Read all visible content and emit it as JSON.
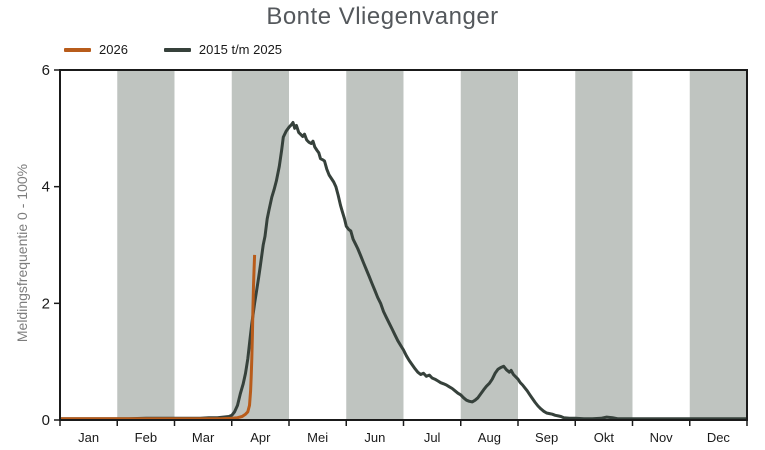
{
  "title": "Bonte Vliegenvanger",
  "legend": {
    "items": [
      {
        "label": "2026",
        "color": "#b85c1b"
      },
      {
        "label": "2015 t/m 2025",
        "color": "#36413b"
      }
    ]
  },
  "y_axis": {
    "label": "Meldingsfrequentie 0 - 100%",
    "ticks": [
      "0",
      "2",
      "4",
      "6"
    ],
    "min": 0,
    "max": 6
  },
  "x_axis": {
    "labels": [
      "Jan",
      "Feb",
      "Mar",
      "Apr",
      "Mei",
      "Jun",
      "Jul",
      "Aug",
      "Sep",
      "Okt",
      "Nov",
      "Dec"
    ]
  },
  "colors": {
    "band": "#bfc4c0",
    "axis": "#1a1a1a",
    "title_text": "#54585c",
    "y_axis_title_text": "#7d7d7d",
    "series_2026": "#b85c1b",
    "series_historical": "#36413b"
  },
  "chart_data": {
    "type": "line",
    "title": "Bonte Vliegenvanger",
    "ylabel": "Meldingsfrequentie 0 - 100%",
    "ylim": [
      0,
      6
    ],
    "x_unit": "months since Jan 1 (0 = Jan, 12 = end of Dec)",
    "x_tick_labels": [
      "Jan",
      "Feb",
      "Mar",
      "Apr",
      "Mei",
      "Jun",
      "Jul",
      "Aug",
      "Sep",
      "Okt",
      "Nov",
      "Dec"
    ],
    "shaded_months": [
      "Feb",
      "Apr",
      "Jun",
      "Aug",
      "Okt",
      "Dec"
    ],
    "grid": false,
    "legend_position": "top-left",
    "series": [
      {
        "name": "2015 t/m 2025",
        "color": "#36413b",
        "points": [
          [
            0,
            0.02
          ],
          [
            0.3,
            0.02
          ],
          [
            0.6,
            0.02
          ],
          [
            0.9,
            0.02
          ],
          [
            1.2,
            0.02
          ],
          [
            1.5,
            0.03
          ],
          [
            1.8,
            0.03
          ],
          [
            2.1,
            0.03
          ],
          [
            2.3,
            0.03
          ],
          [
            2.45,
            0.03
          ],
          [
            2.6,
            0.04
          ],
          [
            2.75,
            0.04
          ],
          [
            2.85,
            0.05
          ],
          [
            2.95,
            0.06
          ],
          [
            3.0,
            0.08
          ],
          [
            3.05,
            0.14
          ],
          [
            3.1,
            0.25
          ],
          [
            3.15,
            0.45
          ],
          [
            3.2,
            0.62
          ],
          [
            3.24,
            0.8
          ],
          [
            3.28,
            1.05
          ],
          [
            3.32,
            1.4
          ],
          [
            3.35,
            1.65
          ],
          [
            3.4,
            2.0
          ],
          [
            3.44,
            2.25
          ],
          [
            3.47,
            2.45
          ],
          [
            3.5,
            2.65
          ],
          [
            3.55,
            3.0
          ],
          [
            3.58,
            3.15
          ],
          [
            3.62,
            3.45
          ],
          [
            3.65,
            3.6
          ],
          [
            3.7,
            3.82
          ],
          [
            3.74,
            3.95
          ],
          [
            3.78,
            4.1
          ],
          [
            3.83,
            4.35
          ],
          [
            3.87,
            4.62
          ],
          [
            3.9,
            4.85
          ],
          [
            3.95,
            4.95
          ],
          [
            4.0,
            5.02
          ],
          [
            4.04,
            5.06
          ],
          [
            4.07,
            5.1
          ],
          [
            4.1,
            5.0
          ],
          [
            4.13,
            5.05
          ],
          [
            4.17,
            4.93
          ],
          [
            4.2,
            4.9
          ],
          [
            4.24,
            4.86
          ],
          [
            4.27,
            4.9
          ],
          [
            4.31,
            4.8
          ],
          [
            4.35,
            4.76
          ],
          [
            4.39,
            4.74
          ],
          [
            4.42,
            4.78
          ],
          [
            4.45,
            4.68
          ],
          [
            4.49,
            4.62
          ],
          [
            4.52,
            4.58
          ],
          [
            4.55,
            4.48
          ],
          [
            4.59,
            4.46
          ],
          [
            4.62,
            4.44
          ],
          [
            4.66,
            4.3
          ],
          [
            4.7,
            4.2
          ],
          [
            4.74,
            4.14
          ],
          [
            4.78,
            4.08
          ],
          [
            4.82,
            4.0
          ],
          [
            4.86,
            3.85
          ],
          [
            4.9,
            3.68
          ],
          [
            4.93,
            3.58
          ],
          [
            4.97,
            3.45
          ],
          [
            5.0,
            3.32
          ],
          [
            5.04,
            3.27
          ],
          [
            5.08,
            3.24
          ],
          [
            5.12,
            3.1
          ],
          [
            5.16,
            3.02
          ],
          [
            5.2,
            2.94
          ],
          [
            5.25,
            2.82
          ],
          [
            5.3,
            2.7
          ],
          [
            5.35,
            2.58
          ],
          [
            5.4,
            2.46
          ],
          [
            5.45,
            2.34
          ],
          [
            5.5,
            2.22
          ],
          [
            5.55,
            2.1
          ],
          [
            5.6,
            2.0
          ],
          [
            5.65,
            1.86
          ],
          [
            5.7,
            1.76
          ],
          [
            5.75,
            1.66
          ],
          [
            5.8,
            1.56
          ],
          [
            5.85,
            1.46
          ],
          [
            5.9,
            1.36
          ],
          [
            5.95,
            1.28
          ],
          [
            6.0,
            1.2
          ],
          [
            6.05,
            1.1
          ],
          [
            6.1,
            1.02
          ],
          [
            6.15,
            0.95
          ],
          [
            6.2,
            0.88
          ],
          [
            6.25,
            0.82
          ],
          [
            6.3,
            0.78
          ],
          [
            6.35,
            0.8
          ],
          [
            6.4,
            0.75
          ],
          [
            6.45,
            0.77
          ],
          [
            6.5,
            0.72
          ],
          [
            6.55,
            0.7
          ],
          [
            6.6,
            0.67
          ],
          [
            6.65,
            0.64
          ],
          [
            6.7,
            0.62
          ],
          [
            6.75,
            0.6
          ],
          [
            6.8,
            0.57
          ],
          [
            6.85,
            0.54
          ],
          [
            6.9,
            0.5
          ],
          [
            6.95,
            0.46
          ],
          [
            7.0,
            0.43
          ],
          [
            7.05,
            0.38
          ],
          [
            7.1,
            0.34
          ],
          [
            7.15,
            0.32
          ],
          [
            7.2,
            0.31
          ],
          [
            7.25,
            0.34
          ],
          [
            7.3,
            0.38
          ],
          [
            7.35,
            0.45
          ],
          [
            7.4,
            0.52
          ],
          [
            7.45,
            0.58
          ],
          [
            7.5,
            0.63
          ],
          [
            7.55,
            0.7
          ],
          [
            7.6,
            0.8
          ],
          [
            7.65,
            0.87
          ],
          [
            7.7,
            0.9
          ],
          [
            7.75,
            0.92
          ],
          [
            7.8,
            0.86
          ],
          [
            7.85,
            0.82
          ],
          [
            7.88,
            0.85
          ],
          [
            7.92,
            0.78
          ],
          [
            7.96,
            0.74
          ],
          [
            8.0,
            0.7
          ],
          [
            8.04,
            0.64
          ],
          [
            8.08,
            0.6
          ],
          [
            8.12,
            0.55
          ],
          [
            8.16,
            0.5
          ],
          [
            8.2,
            0.44
          ],
          [
            8.25,
            0.37
          ],
          [
            8.3,
            0.3
          ],
          [
            8.35,
            0.24
          ],
          [
            8.4,
            0.19
          ],
          [
            8.45,
            0.15
          ],
          [
            8.5,
            0.12
          ],
          [
            8.55,
            0.11
          ],
          [
            8.6,
            0.1
          ],
          [
            8.65,
            0.08
          ],
          [
            8.7,
            0.07
          ],
          [
            8.75,
            0.06
          ],
          [
            8.8,
            0.04
          ],
          [
            8.9,
            0.03
          ],
          [
            9.0,
            0.03
          ],
          [
            9.15,
            0.02
          ],
          [
            9.3,
            0.02
          ],
          [
            9.45,
            0.03
          ],
          [
            9.55,
            0.05
          ],
          [
            9.65,
            0.04
          ],
          [
            9.75,
            0.02
          ],
          [
            9.9,
            0.02
          ],
          [
            10.1,
            0.02
          ],
          [
            10.4,
            0.02
          ],
          [
            10.7,
            0.02
          ],
          [
            11.0,
            0.02
          ],
          [
            11.3,
            0.02
          ],
          [
            11.6,
            0.02
          ],
          [
            12.0,
            0.02
          ]
        ]
      },
      {
        "name": "2026",
        "color": "#b85c1b",
        "points": [
          [
            0,
            0.02
          ],
          [
            0.4,
            0.02
          ],
          [
            0.8,
            0.02
          ],
          [
            1.2,
            0.02
          ],
          [
            1.6,
            0.02
          ],
          [
            2.0,
            0.02
          ],
          [
            2.4,
            0.02
          ],
          [
            2.8,
            0.02
          ],
          [
            3.0,
            0.03
          ],
          [
            3.1,
            0.04
          ],
          [
            3.18,
            0.06
          ],
          [
            3.24,
            0.1
          ],
          [
            3.28,
            0.14
          ],
          [
            3.31,
            0.25
          ],
          [
            3.33,
            0.5
          ],
          [
            3.34,
            0.75
          ],
          [
            3.35,
            1.05
          ],
          [
            3.36,
            1.45
          ],
          [
            3.37,
            1.9
          ],
          [
            3.38,
            2.3
          ],
          [
            3.39,
            2.6
          ],
          [
            3.4,
            2.83
          ]
        ]
      }
    ]
  }
}
